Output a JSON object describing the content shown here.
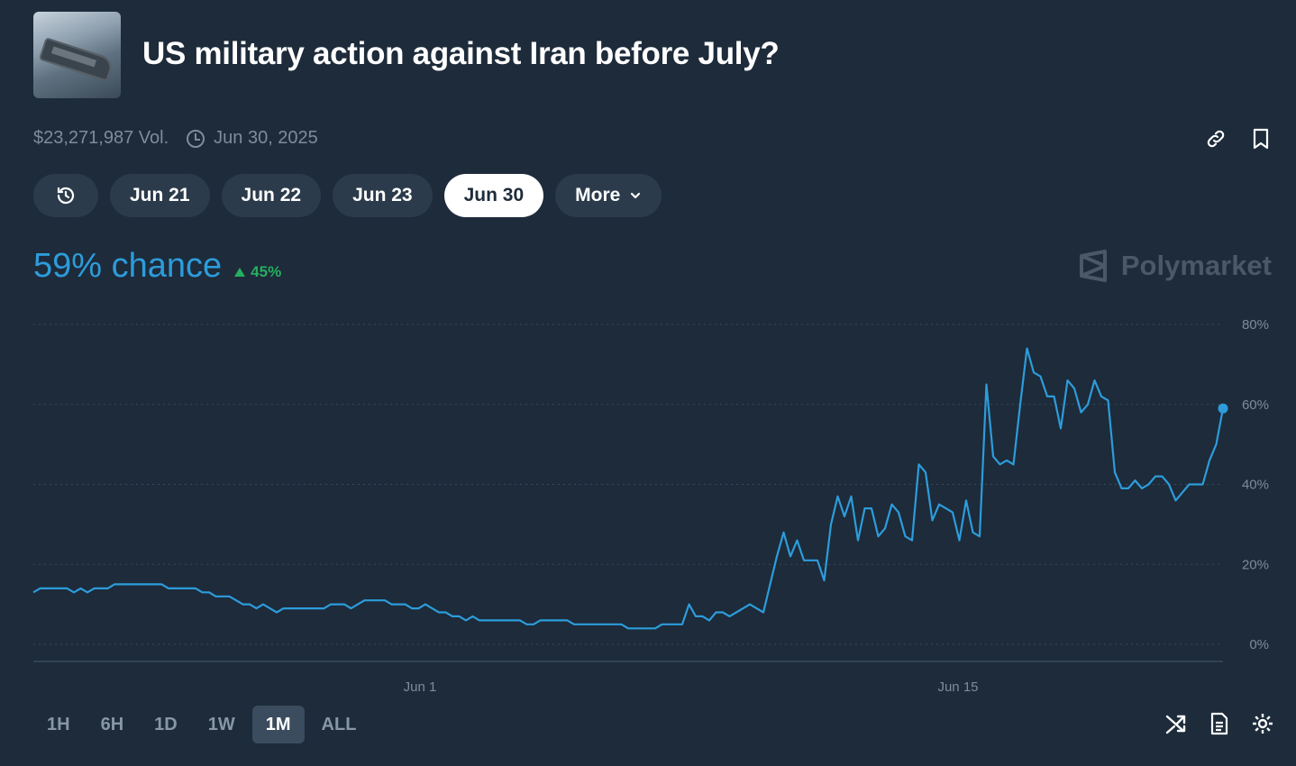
{
  "header": {
    "title": "US military action against Iran before July?",
    "volume": "$23,271,987 Vol.",
    "end_date": "Jun 30, 2025"
  },
  "tabs": [
    {
      "label": "Jun 21"
    },
    {
      "label": "Jun 22"
    },
    {
      "label": "Jun 23"
    },
    {
      "label": "Jun 30",
      "active": true
    },
    {
      "label": "More"
    }
  ],
  "summary": {
    "chance": "59% chance",
    "delta": "45%"
  },
  "brand": "Polymarket",
  "ranges": [
    {
      "label": "1H"
    },
    {
      "label": "6H"
    },
    {
      "label": "1D"
    },
    {
      "label": "1W"
    },
    {
      "label": "1M",
      "active": true
    },
    {
      "label": "ALL"
    }
  ],
  "colors": {
    "background": "#1d2b3a",
    "accent": "#2d9cdb",
    "positive": "#27ae60",
    "chip": "#2c3b4b"
  },
  "chart_data": {
    "type": "line",
    "x_ticks": [
      "Jun 1",
      "Jun 15"
    ],
    "y_ticks": [
      "80%",
      "60%",
      "40%",
      "20%",
      "0%"
    ],
    "ylim": [
      0,
      80
    ],
    "grid": true,
    "series": [
      {
        "values": [
          13,
          14,
          14,
          14,
          14,
          14,
          13,
          14,
          13,
          14,
          14,
          14,
          15,
          15,
          15,
          15,
          15,
          15,
          15,
          15,
          14,
          14,
          14,
          14,
          14,
          13,
          13,
          12,
          12,
          12,
          11,
          10,
          10,
          9,
          10,
          9,
          8,
          9,
          9,
          9,
          9,
          9,
          9,
          9,
          10,
          10,
          10,
          9,
          10,
          11,
          11,
          11,
          11,
          10,
          10,
          10,
          9,
          9,
          10,
          9,
          8,
          8,
          7,
          7,
          6,
          7,
          6,
          6,
          6,
          6,
          6,
          6,
          6,
          5,
          5,
          6,
          6,
          6,
          6,
          6,
          5,
          5,
          5,
          5,
          5,
          5,
          5,
          5,
          4,
          4,
          4,
          4,
          4,
          5,
          5,
          5,
          5,
          10,
          7,
          7,
          6,
          8,
          8,
          7,
          8,
          9,
          10,
          9,
          8,
          15,
          22,
          28,
          22,
          26,
          21,
          21,
          21,
          16,
          30,
          37,
          32,
          37,
          26,
          34,
          34,
          27,
          29,
          35,
          33,
          27,
          26,
          45,
          43,
          31,
          35,
          34,
          33,
          26,
          36,
          28,
          27,
          65,
          47,
          45,
          46,
          45,
          60,
          74,
          68,
          67,
          62,
          62,
          54,
          66,
          64,
          58,
          60,
          66,
          62,
          61,
          43,
          39,
          39,
          41,
          39,
          40,
          42,
          42,
          40,
          36,
          38,
          40,
          40,
          40,
          46,
          50,
          59
        ]
      }
    ]
  }
}
